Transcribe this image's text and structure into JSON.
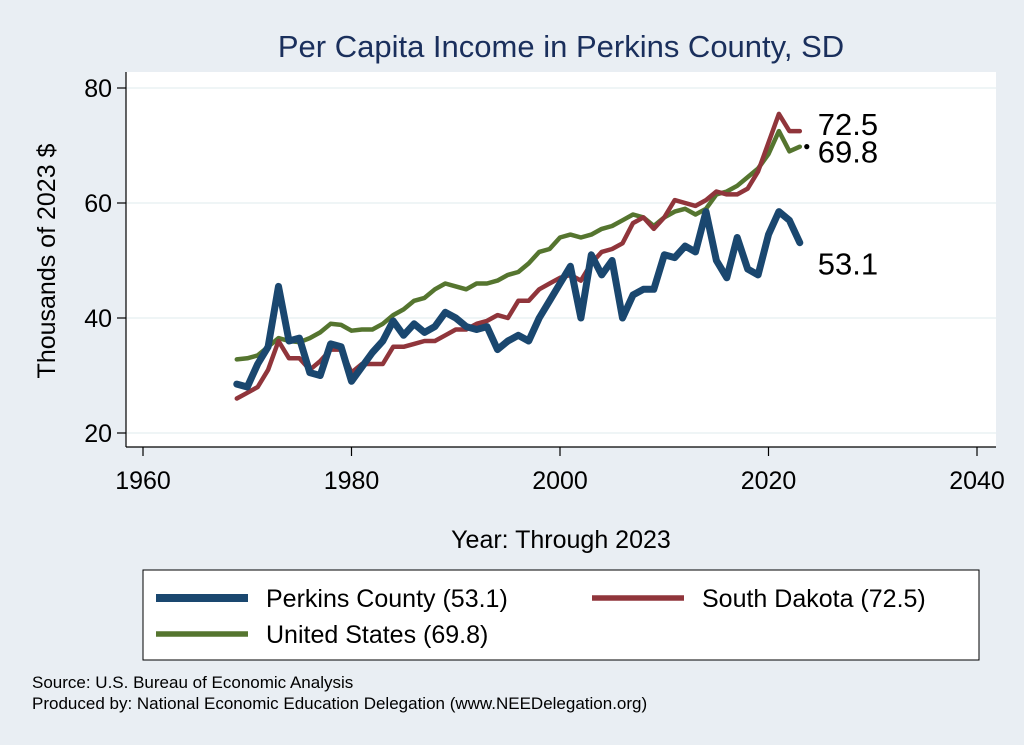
{
  "chart_data": {
    "type": "line",
    "title": "Per Capita Income in Perkins County, SD",
    "xlabel": "Year: Through 2023",
    "ylabel": "Thousands of 2023 $",
    "xlim": [
      1960,
      2040
    ],
    "ylim": [
      20,
      80
    ],
    "xticks": [
      1960,
      1980,
      2000,
      2020,
      2040
    ],
    "yticks": [
      20,
      40,
      60,
      80
    ],
    "grid": true,
    "legend_position": "bottom",
    "x": [
      1969,
      1970,
      1971,
      1972,
      1973,
      1974,
      1975,
      1976,
      1977,
      1978,
      1979,
      1980,
      1981,
      1982,
      1983,
      1984,
      1985,
      1986,
      1987,
      1988,
      1989,
      1990,
      1991,
      1992,
      1993,
      1994,
      1995,
      1996,
      1997,
      1998,
      1999,
      2000,
      2001,
      2002,
      2003,
      2004,
      2005,
      2006,
      2007,
      2008,
      2009,
      2010,
      2011,
      2012,
      2013,
      2014,
      2015,
      2016,
      2017,
      2018,
      2019,
      2020,
      2021,
      2022,
      2023
    ],
    "series": [
      {
        "name": "Perkins County (53.1)",
        "end_label": "53.1",
        "color": "#1a476f",
        "values": [
          28.5,
          28,
          32,
          35,
          45.5,
          36,
          36.5,
          30.5,
          30,
          35.5,
          35,
          29,
          31.5,
          34,
          36,
          39.5,
          37,
          39,
          37.5,
          38.5,
          41,
          40,
          38.5,
          38,
          38.5,
          34.5,
          36,
          37,
          36,
          40,
          43,
          46,
          49,
          40,
          51,
          47.5,
          50,
          40,
          44,
          45,
          45,
          51,
          50.5,
          52.5,
          51.5,
          58.5,
          50,
          47,
          54,
          48.5,
          47.5,
          54.5,
          58.5,
          57,
          53.1
        ]
      },
      {
        "name": "South Dakota (72.5)",
        "end_label": "72.5",
        "color": "#90353b",
        "values": [
          26,
          27,
          28,
          31,
          36,
          33,
          33,
          31,
          32.5,
          34.5,
          34.5,
          30.5,
          32,
          32,
          32,
          35,
          35,
          35.5,
          36,
          36,
          37,
          38,
          38,
          39,
          39.5,
          40.5,
          40,
          43,
          43,
          45,
          46,
          47,
          47.5,
          46.5,
          49.5,
          51.5,
          52,
          53,
          56.5,
          57.5,
          55.5,
          57.5,
          60.5,
          60,
          59.5,
          60.5,
          62,
          61.5,
          61.5,
          62.5,
          65.5,
          70.5,
          75.5,
          72.5,
          72.5
        ]
      },
      {
        "name": "United States (69.8)",
        "end_label": "69.8",
        "color": "#55752f",
        "values": [
          32.8,
          33,
          33.5,
          35,
          36.5,
          36,
          35.8,
          36.5,
          37.5,
          39,
          38.8,
          37.8,
          38,
          38,
          39,
          40.5,
          41.5,
          43,
          43.5,
          45,
          46,
          45.5,
          45,
          46,
          46,
          46.5,
          47.5,
          48,
          49.5,
          51.5,
          52,
          54,
          54.5,
          54,
          54.5,
          55.5,
          56,
          57,
          58,
          57.5,
          56,
          57.5,
          58.5,
          59,
          58,
          59,
          61.5,
          62,
          63,
          64.5,
          66,
          68.5,
          72.5,
          69,
          69.8
        ]
      }
    ]
  },
  "footer": {
    "source": "Source: U.S. Bureau of Economic Analysis",
    "producer": "Produced by: National Economic Education Delegation (www.NEEDelegation.org)"
  }
}
